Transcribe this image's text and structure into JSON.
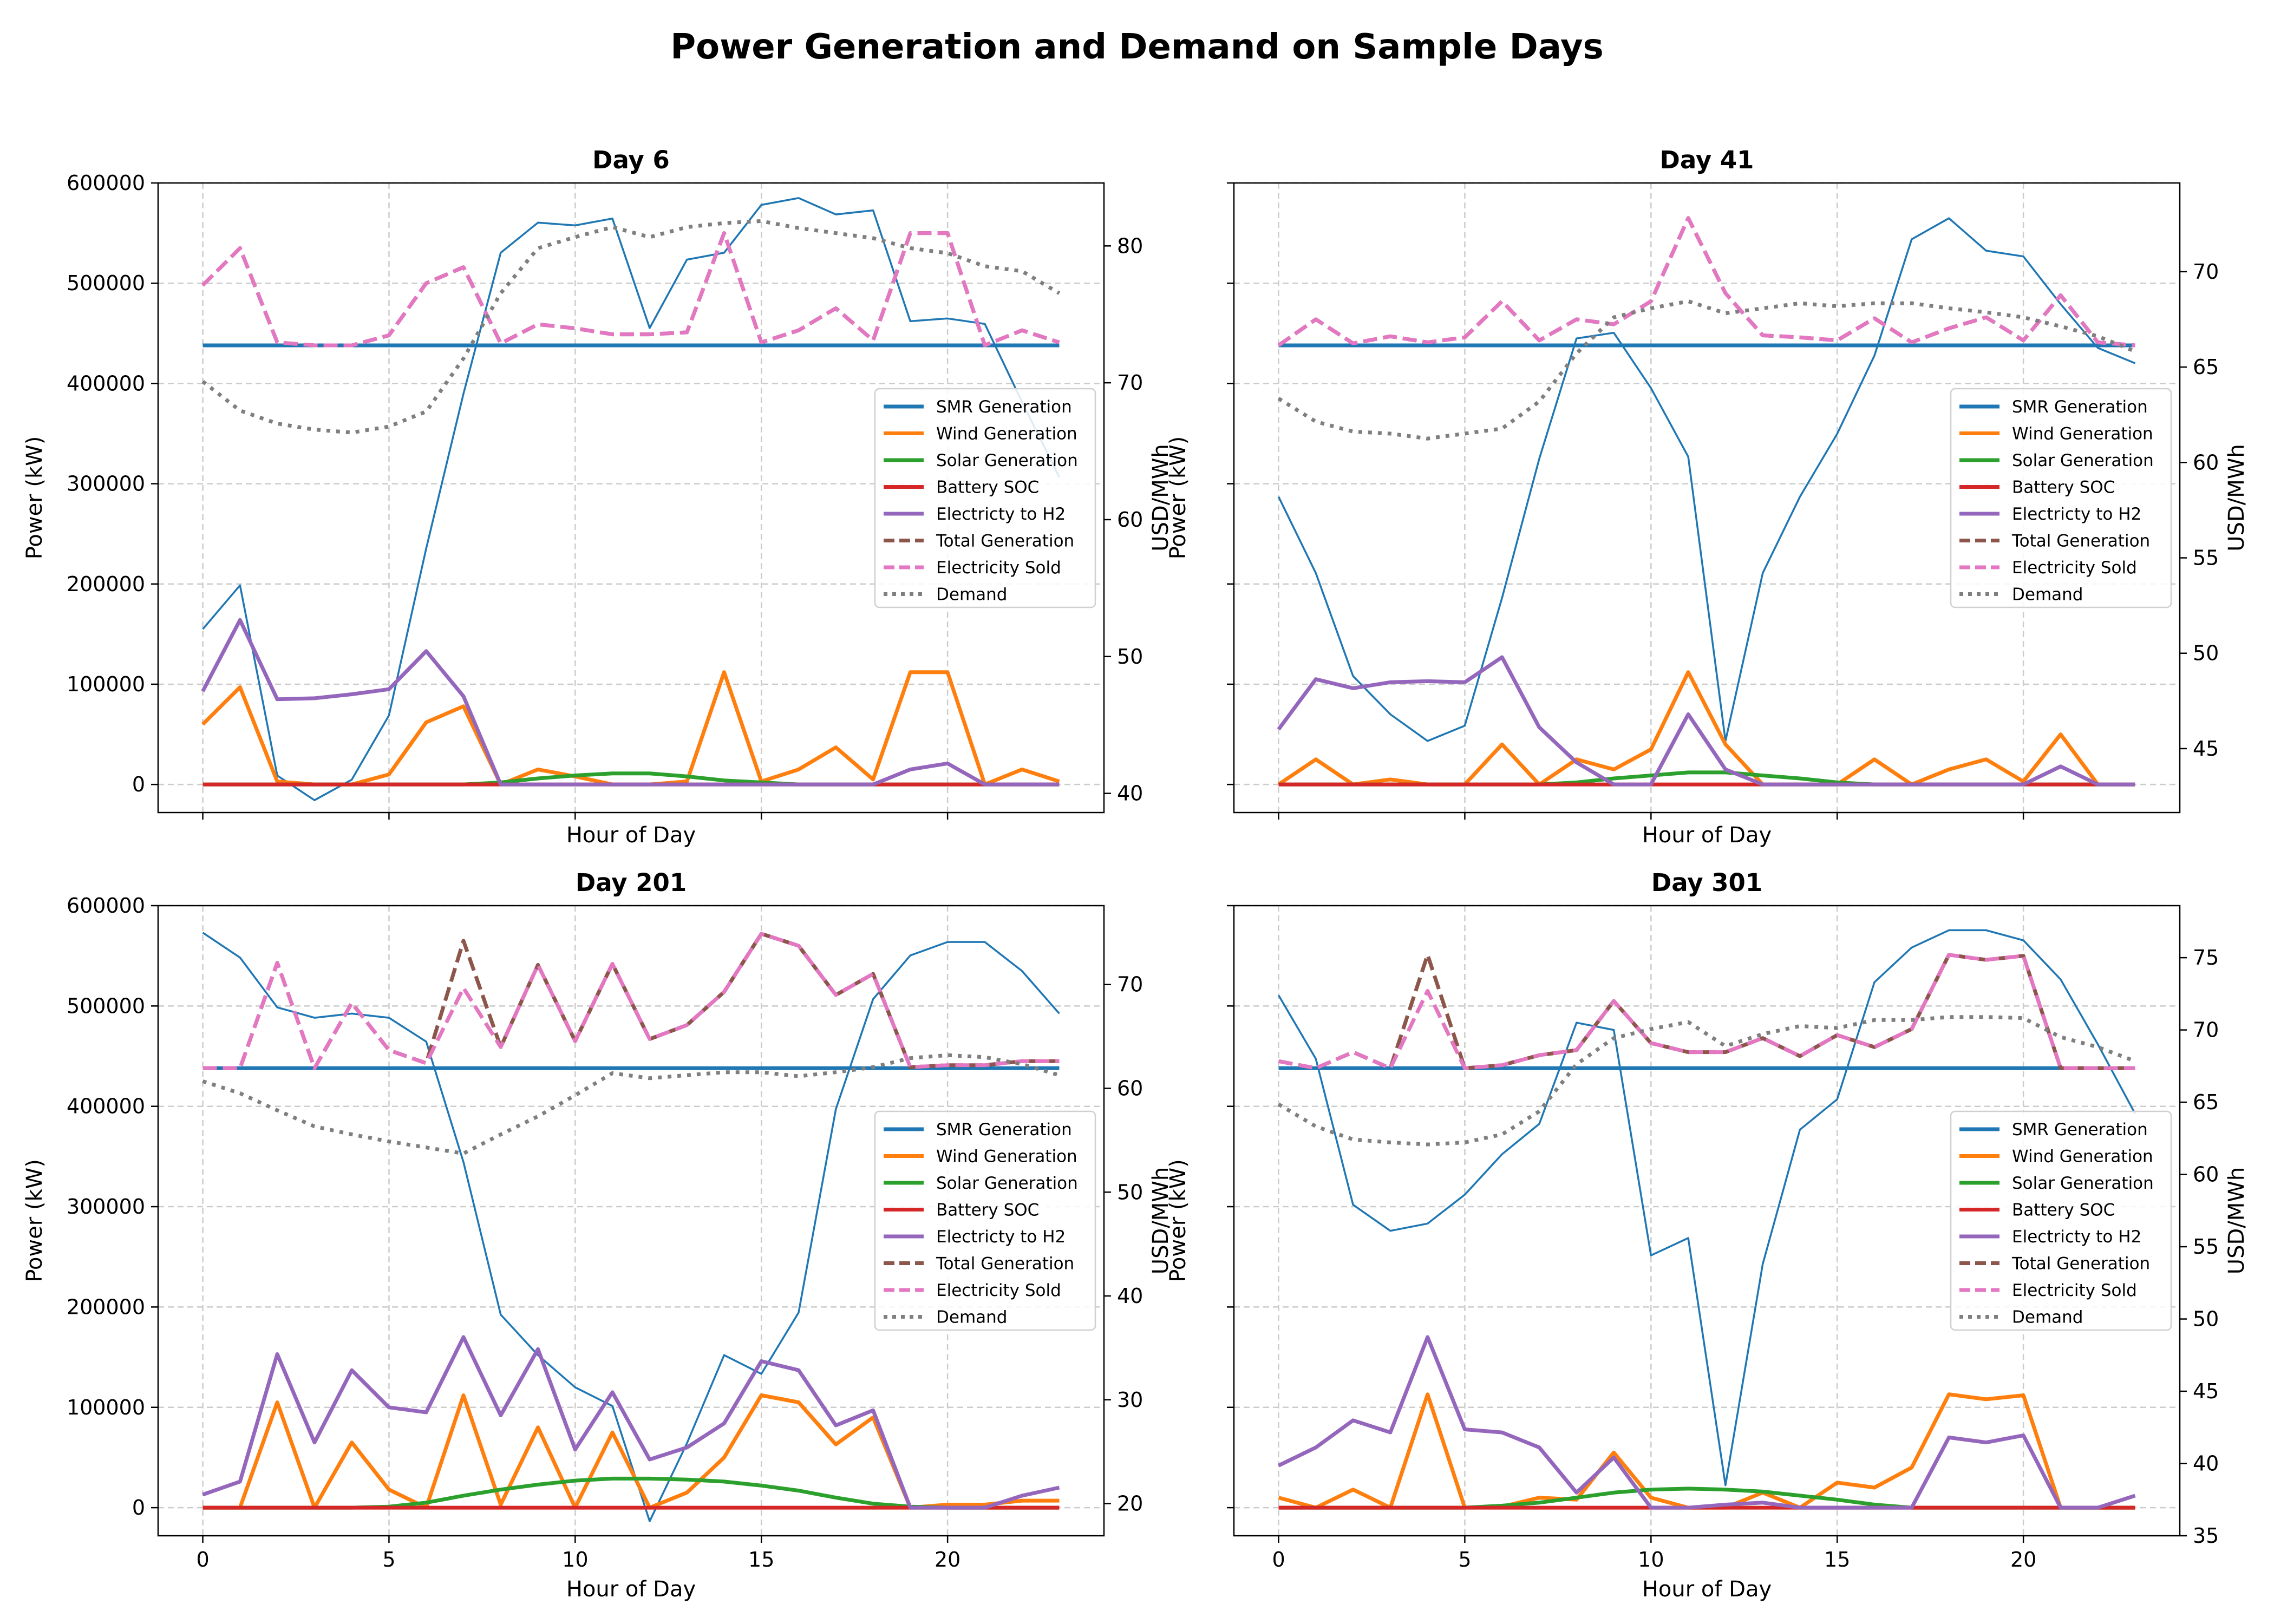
{
  "figure": {
    "title": "Power Generation and Demand on Sample Days"
  },
  "colors": {
    "smr": "#1f77b4",
    "wind": "#ff7f0e",
    "solar": "#2ca02c",
    "battery": "#d62728",
    "h2": "#9467bd",
    "total": "#8c564b",
    "sold": "#e377c2",
    "demand": "#7f7f7f",
    "price": "#1f77b4",
    "grid": "#cccccc"
  },
  "legend_labels": [
    "SMR Generation",
    "Wind Generation",
    "Solar Generation",
    "Battery SOC",
    "Electricty to H2",
    "Total Generation",
    "Electricity Sold",
    "Demand"
  ],
  "chart_data": [
    {
      "type": "line",
      "title": "Day 6",
      "xlabel": "Hour of Day",
      "ylabel": "Power (kW)",
      "y2label": "USD/MWh",
      "xlim": [
        -1.2,
        24.2
      ],
      "ylim": [
        -28000,
        600000
      ],
      "y2lim": [
        38.6,
        84.6
      ],
      "xticks": [
        0,
        5,
        10,
        15,
        20
      ],
      "xtick_labels_shown": false,
      "yticks": [
        0,
        100000,
        200000,
        300000,
        400000,
        500000,
        600000
      ],
      "y2ticks": [
        40,
        50,
        60,
        70,
        80
      ],
      "grid": true,
      "legend_position": "center-right",
      "x": [
        0,
        1,
        2,
        3,
        4,
        5,
        6,
        7,
        8,
        9,
        10,
        11,
        12,
        13,
        14,
        15,
        16,
        17,
        18,
        19,
        20,
        21,
        22,
        23
      ],
      "series": {
        "smr": [
          438000,
          438000,
          438000,
          438000,
          438000,
          438000,
          438000,
          438000,
          438000,
          438000,
          438000,
          438000,
          438000,
          438000,
          438000,
          438000,
          438000,
          438000,
          438000,
          438000,
          438000,
          438000,
          438000,
          438000
        ],
        "wind": [
          60000,
          97000,
          3000,
          0,
          0,
          10000,
          62000,
          78000,
          0,
          15000,
          8000,
          0,
          0,
          3000,
          112000,
          3000,
          15000,
          37000,
          5000,
          112000,
          112000,
          0,
          15000,
          3000
        ],
        "solar": [
          0,
          0,
          0,
          0,
          0,
          0,
          0,
          0,
          2000,
          6000,
          9000,
          11000,
          11000,
          8000,
          4000,
          2000,
          0,
          0,
          0,
          0,
          0,
          0,
          0,
          0
        ],
        "battery": [
          0,
          0,
          0,
          0,
          0,
          0,
          0,
          0,
          0,
          0,
          0,
          0,
          0,
          0,
          0,
          0,
          0,
          0,
          0,
          0,
          0,
          0,
          0,
          0
        ],
        "h2": [
          93000,
          164000,
          85000,
          86000,
          90000,
          95000,
          133000,
          88000,
          0,
          0,
          0,
          0,
          0,
          0,
          0,
          0,
          0,
          0,
          0,
          15000,
          21000,
          0,
          0,
          0
        ],
        "total": [
          498000,
          535000,
          441000,
          438000,
          438000,
          448000,
          500000,
          516000,
          440000,
          459000,
          455000,
          449000,
          449000,
          451000,
          550000,
          441000,
          453000,
          475000,
          443000,
          550000,
          550000,
          438000,
          453000,
          441000
        ],
        "sold": [
          498000,
          535000,
          441000,
          438000,
          438000,
          448000,
          500000,
          516000,
          440000,
          459000,
          455000,
          449000,
          449000,
          451000,
          550000,
          441000,
          453000,
          475000,
          443000,
          550000,
          550000,
          438000,
          453000,
          441000
        ],
        "price": [
          52,
          55.2,
          41.3,
          39.5,
          41,
          45.7,
          57.9,
          69.2,
          79.5,
          81.7,
          81.5,
          82,
          74,
          79,
          79.5,
          83,
          83.5,
          82.3,
          82.6,
          74.5,
          74.7,
          74.3,
          68.6,
          63.1
        ],
        "demand": [
          402000,
          373000,
          360000,
          354000,
          351000,
          357000,
          372000,
          425000,
          490000,
          535000,
          546000,
          556000,
          546000,
          556000,
          560000,
          562000,
          555000,
          550000,
          545000,
          535000,
          530000,
          517000,
          512000,
          490000
        ]
      }
    },
    {
      "type": "line",
      "title": "Day 41",
      "xlabel": "Hour of Day",
      "ylabel": "Power (kW)",
      "y2label": "USD/MWh",
      "xlim": [
        -1.2,
        24.2
      ],
      "ylim": [
        -28000,
        600000
      ],
      "y2lim": [
        41.65,
        74.65
      ],
      "xticks": [
        0,
        5,
        10,
        15,
        20
      ],
      "xtick_labels_shown": false,
      "yticks": [
        0,
        100000,
        200000,
        300000,
        400000,
        500000,
        600000
      ],
      "y2ticks": [
        45,
        50,
        55,
        60,
        65,
        70
      ],
      "grid": true,
      "legend_position": "center-right",
      "x": [
        0,
        1,
        2,
        3,
        4,
        5,
        6,
        7,
        8,
        9,
        10,
        11,
        12,
        13,
        14,
        15,
        16,
        17,
        18,
        19,
        20,
        21,
        22,
        23
      ],
      "series": {
        "smr": [
          438000,
          438000,
          438000,
          438000,
          438000,
          438000,
          438000,
          438000,
          438000,
          438000,
          438000,
          438000,
          438000,
          438000,
          438000,
          438000,
          438000,
          438000,
          438000,
          438000,
          438000,
          438000,
          438000,
          438000
        ],
        "wind": [
          0,
          25000,
          0,
          5000,
          0,
          0,
          40000,
          0,
          25000,
          15000,
          35000,
          112000,
          40000,
          0,
          0,
          0,
          25000,
          0,
          15000,
          25000,
          3000,
          50000,
          0,
          0
        ],
        "solar": [
          0,
          0,
          0,
          0,
          0,
          0,
          0,
          0,
          2000,
          6000,
          9000,
          12000,
          12000,
          9000,
          6000,
          2000,
          0,
          0,
          0,
          0,
          0,
          0,
          0,
          0
        ],
        "battery": [
          0,
          0,
          0,
          0,
          0,
          0,
          0,
          0,
          0,
          0,
          0,
          0,
          0,
          0,
          0,
          0,
          0,
          0,
          0,
          0,
          0,
          0,
          0,
          0
        ],
        "h2": [
          55000,
          105000,
          96000,
          102000,
          103000,
          102000,
          127000,
          57000,
          22000,
          0,
          0,
          70000,
          15000,
          0,
          0,
          0,
          0,
          0,
          0,
          0,
          0,
          18000,
          0,
          0
        ],
        "total": [
          438000,
          464000,
          440000,
          447000,
          441000,
          446000,
          482000,
          443000,
          464000,
          459000,
          482000,
          565000,
          490000,
          448000,
          446000,
          443000,
          465000,
          441000,
          455000,
          466000,
          443000,
          488000,
          441000,
          438000
        ],
        "sold": [
          438000,
          464000,
          440000,
          447000,
          441000,
          446000,
          482000,
          443000,
          464000,
          459000,
          482000,
          565000,
          490000,
          448000,
          446000,
          443000,
          465000,
          441000,
          455000,
          466000,
          443000,
          488000,
          441000,
          438000
        ],
        "price": [
          58.2,
          54.2,
          48.8,
          46.8,
          45.4,
          46.2,
          52.9,
          60.2,
          66.5,
          66.8,
          63.9,
          60.3,
          45.4,
          54.2,
          58.2,
          61.5,
          65.6,
          71.7,
          72.8,
          71.1,
          70.8,
          68.3,
          66,
          65.2
        ],
        "demand": [
          385000,
          362000,
          352000,
          350000,
          345000,
          350000,
          355000,
          382000,
          430000,
          466000,
          475000,
          482000,
          470000,
          475000,
          480000,
          477000,
          480000,
          480000,
          475000,
          471000,
          466000,
          457000,
          447000,
          432000
        ]
      }
    },
    {
      "type": "line",
      "title": "Day 201",
      "xlabel": "Hour of Day",
      "ylabel": "Power (kW)",
      "y2label": "USD/MWh",
      "xlim": [
        -1.2,
        24.2
      ],
      "ylim": [
        -28000,
        600000
      ],
      "y2lim": [
        16.9,
        77.6
      ],
      "xticks": [
        0,
        5,
        10,
        15,
        20
      ],
      "xtick_labels_shown": true,
      "yticks": [
        0,
        100000,
        200000,
        300000,
        400000,
        500000,
        600000
      ],
      "y2ticks": [
        20,
        30,
        40,
        50,
        60,
        70
      ],
      "grid": true,
      "legend_position": "center-right",
      "x": [
        0,
        1,
        2,
        3,
        4,
        5,
        6,
        7,
        8,
        9,
        10,
        11,
        12,
        13,
        14,
        15,
        16,
        17,
        18,
        19,
        20,
        21,
        22,
        23
      ],
      "series": {
        "smr": [
          438000,
          438000,
          438000,
          438000,
          438000,
          438000,
          438000,
          438000,
          438000,
          438000,
          438000,
          438000,
          438000,
          438000,
          438000,
          438000,
          438000,
          438000,
          438000,
          438000,
          438000,
          438000,
          438000,
          438000
        ],
        "wind": [
          0,
          0,
          105000,
          0,
          65000,
          18000,
          0,
          112000,
          3000,
          80000,
          0,
          75000,
          0,
          15000,
          50000,
          112000,
          105000,
          63000,
          90000,
          0,
          3000,
          3000,
          7000,
          7000
        ],
        "solar": [
          0,
          0,
          0,
          0,
          0,
          1000,
          5000,
          12000,
          18000,
          23000,
          27000,
          29000,
          29000,
          28000,
          26000,
          22000,
          17000,
          10000,
          4000,
          1000,
          0,
          0,
          0,
          0
        ],
        "battery": [
          0,
          0,
          0,
          0,
          0,
          0,
          0,
          0,
          0,
          0,
          0,
          0,
          0,
          0,
          0,
          0,
          0,
          0,
          0,
          0,
          0,
          0,
          0,
          0
        ],
        "h2": [
          13000,
          26000,
          153000,
          65000,
          137000,
          100000,
          95000,
          170000,
          92000,
          158000,
          58000,
          115000,
          48000,
          60000,
          84000,
          146000,
          137000,
          82000,
          97000,
          0,
          0,
          0,
          12000,
          20000
        ],
        "total": [
          438000,
          438000,
          543000,
          438000,
          503000,
          456000,
          443000,
          565000,
          459000,
          541000,
          465000,
          542000,
          467000,
          481000,
          514000,
          572000,
          560000,
          511000,
          532000,
          439000,
          441000,
          441000,
          445000,
          445000
        ],
        "sold": [
          438000,
          438000,
          543000,
          438000,
          503000,
          456000,
          443000,
          518000,
          459000,
          541000,
          465000,
          542000,
          467000,
          481000,
          514000,
          572000,
          560000,
          511000,
          532000,
          439000,
          441000,
          441000,
          445000,
          445000
        ],
        "price": [
          75,
          72.6,
          67.8,
          66.8,
          67.2,
          66.8,
          64.5,
          52.9,
          38.2,
          34.3,
          31.2,
          29.4,
          18.3,
          25.8,
          34.3,
          32.5,
          38.4,
          58,
          68.6,
          72.8,
          74.1,
          74.1,
          71.3,
          67.2
        ],
        "demand": [
          425000,
          413000,
          396000,
          380000,
          372000,
          365000,
          359000,
          353000,
          372000,
          390000,
          411000,
          433000,
          428000,
          431000,
          434000,
          434000,
          430000,
          434000,
          439000,
          448000,
          451000,
          449000,
          442000,
          431000
        ]
      }
    },
    {
      "type": "line",
      "title": "Day 301",
      "xlabel": "Hour of Day",
      "ylabel": "Power (kW)",
      "y2label": "USD/MWh",
      "xlim": [
        -1.2,
        24.2
      ],
      "ylim": [
        -28000,
        600000
      ],
      "y2lim": [
        35,
        78.6
      ],
      "xticks": [
        0,
        5,
        10,
        15,
        20
      ],
      "xtick_labels_shown": true,
      "yticks": [
        0,
        100000,
        200000,
        300000,
        400000,
        500000,
        600000
      ],
      "y2ticks": [
        35,
        40,
        45,
        50,
        55,
        60,
        65,
        70,
        75
      ],
      "grid": true,
      "legend_position": "center-right",
      "x": [
        0,
        1,
        2,
        3,
        4,
        5,
        6,
        7,
        8,
        9,
        10,
        11,
        12,
        13,
        14,
        15,
        16,
        17,
        18,
        19,
        20,
        21,
        22,
        23
      ],
      "series": {
        "smr": [
          438000,
          438000,
          438000,
          438000,
          438000,
          438000,
          438000,
          438000,
          438000,
          438000,
          438000,
          438000,
          438000,
          438000,
          438000,
          438000,
          438000,
          438000,
          438000,
          438000,
          438000,
          438000,
          438000,
          438000
        ],
        "wind": [
          10000,
          0,
          18000,
          0,
          113000,
          0,
          1000,
          10000,
          8000,
          55000,
          10000,
          0,
          0,
          15000,
          0,
          25000,
          20000,
          40000,
          113000,
          108000,
          112000,
          0,
          0,
          0
        ],
        "solar": [
          0,
          0,
          0,
          0,
          0,
          0,
          2000,
          5000,
          10000,
          15000,
          18000,
          19000,
          18000,
          16000,
          12000,
          8000,
          3000,
          0,
          0,
          0,
          0,
          0,
          0,
          0
        ],
        "battery": [
          0,
          0,
          0,
          0,
          0,
          0,
          0,
          0,
          0,
          0,
          0,
          0,
          0,
          0,
          0,
          0,
          0,
          0,
          0,
          0,
          0,
          0,
          0,
          0
        ],
        "h2": [
          42000,
          60000,
          87000,
          75000,
          170000,
          78000,
          75000,
          60000,
          15000,
          50000,
          0,
          0,
          3000,
          5000,
          0,
          0,
          0,
          0,
          70000,
          65000,
          72000,
          0,
          0,
          12000
        ],
        "total": [
          445000,
          438000,
          454000,
          438000,
          551000,
          438000,
          441000,
          451000,
          456000,
          505000,
          463000,
          454000,
          454000,
          468000,
          450000,
          471000,
          459000,
          477000,
          551000,
          546000,
          550000,
          438000,
          438000,
          438000
        ],
        "sold": [
          445000,
          438000,
          454000,
          438000,
          515000,
          438000,
          441000,
          451000,
          456000,
          505000,
          463000,
          454000,
          454000,
          468000,
          450000,
          471000,
          459000,
          477000,
          551000,
          546000,
          550000,
          438000,
          438000,
          438000
        ],
        "price": [
          72.4,
          68,
          57.9,
          56.1,
          56.6,
          58.6,
          61.4,
          63.5,
          70.5,
          70,
          54.4,
          55.6,
          38.5,
          53.8,
          63.1,
          65.2,
          73.3,
          75.7,
          76.9,
          76.9,
          76.2,
          73.5,
          69,
          64.2
        ],
        "demand": [
          402000,
          380000,
          367000,
          364000,
          362000,
          364000,
          372000,
          395000,
          442000,
          468000,
          477000,
          484000,
          460000,
          472000,
          480000,
          478000,
          486000,
          486000,
          489000,
          489000,
          488000,
          469000,
          459000,
          445000
        ]
      }
    }
  ]
}
